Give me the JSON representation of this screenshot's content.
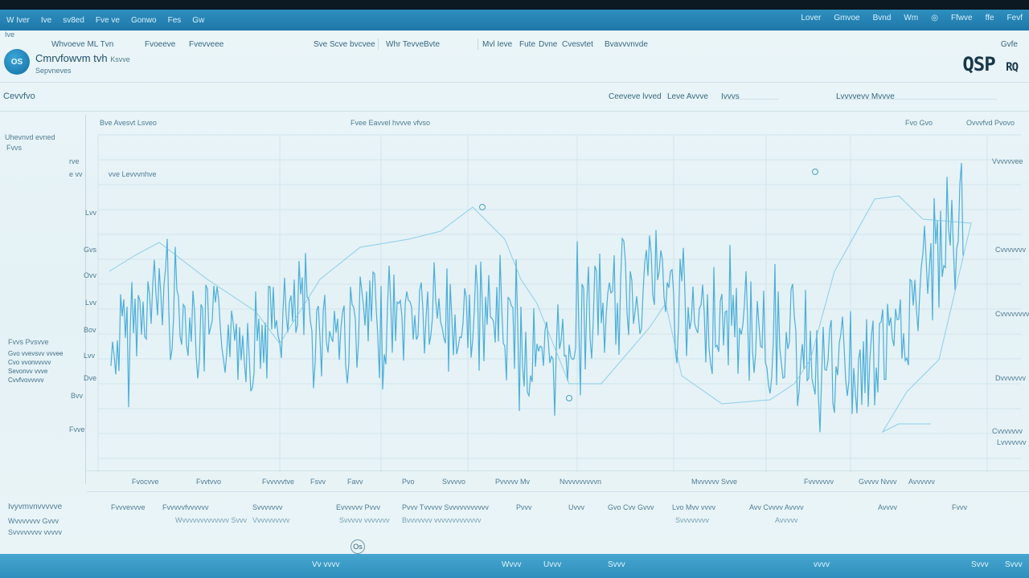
{
  "topbar": {
    "menu": [
      "W Iver",
      "Ive",
      "sv8ed",
      "Fve ve",
      "Gonwo",
      "Fes",
      "Gw"
    ],
    "right": [
      "Lover",
      "Gmvoe",
      "Bvnd",
      "Wm",
      "◎",
      "Ffwve",
      "ffe",
      "Fevf"
    ]
  },
  "header": {
    "nav": [
      "Whvoeve ML Tvn",
      "Fvoeeve",
      "Fvevveee",
      "Sve",
      "Scve bvcvee",
      "Whr Tevve",
      "Bvte",
      "Mvl Ieve",
      "Fute",
      "Dvne",
      "Cvesvtet",
      "Bvavvvnvde",
      "Gvfe"
    ],
    "logo_text": "OS",
    "brand": "Cmrvfowvm tvh",
    "brand_suffix": "Ksvve",
    "brand_sub": "Sepvneves",
    "code": "QSP",
    "code_suffix": "RQ",
    "code_top": "Gvfe"
  },
  "toolbar": {
    "left_label": "Cevvfvo",
    "items": [
      "Ceeveve lvved",
      "Leve Avvve",
      "Ivvvs"
    ],
    "right_item": "Lvvvvevv Mvvve"
  },
  "chart_header": {
    "left": "Bve Avesvt Lsveo",
    "center": "Fvee Eavvel hvvve vfvso",
    "right1": "Fvo Gvo",
    "right2": "Ovvvfvd Pvovo"
  },
  "left_panel": {
    "title": "Uhevnvd evned",
    "sub": "Fvvs",
    "section": "Fvvs Pvsvve",
    "lines": [
      "Gvo vvevsvv vvvee",
      "Cvo vvonvvvvv",
      "Sevonvv vvve",
      "Cvvfvovvvvv"
    ]
  },
  "y_labels_left": [
    "rve",
    "e vv",
    "Lvv",
    "Gvs",
    "Ovv",
    "Lvv",
    "Bov",
    "Lvv",
    "Dve",
    "Bvv",
    "Fvve"
  ],
  "annotation": "vve Levvvnhve",
  "y_labels_right": [
    "Vvvvvvee",
    "Cvvvvvvv",
    "Cvvvvvvvv",
    "Dvvvvvvv",
    "Cvvvvvvv",
    "Lvvvvvvv"
  ],
  "x_labels": [
    "Fvocvve",
    "Fvvtvvo",
    "Fvvvvvtve",
    "Fsvv",
    "Favv",
    "Pvo",
    "Svvvvo",
    "Pvvvvv Mv",
    "Nvvvvvvvvvn",
    "Mvvvvvv Svve",
    "Fvvvvvvv",
    "Gvvvv Nvvv",
    "Avvvvvv"
  ],
  "footer_row1": [
    "Fvvvevvve",
    "Fvvvvvfvvvvvv",
    "Svvvvvvv",
    "Evvvvvv Pvvv",
    "Pvvv Tvvvvv Svvvvvvvvvvv",
    "Pvvv",
    "Uvvv",
    "Gvo Cvv Gvvv",
    "Lvo Mvv vvvv",
    "Avv Cvvvv Avvvv",
    "Avvvv",
    "Fvvv"
  ],
  "footer_row2": [
    "Wvvvvvvvvvvvvv Svvv",
    "Vvvvvvvvvv",
    "Svvvvv vvvvvvv",
    "Bvvvvvvv vvvvvvvvvvvvv",
    "Svvvvvvvv",
    "Avvvvv"
  ],
  "footer_left": {
    "title": "Ivyvmvnvvvvve",
    "lines": [
      "Wvvvvvvv Gvvv",
      "Svvvvvvvv vvvvv"
    ]
  },
  "footer_center_icon": "Os",
  "bottombar": [
    "Vv vvvv",
    "Wvvv",
    "Uvvv",
    "Svvv",
    "vvvv",
    "Svvv",
    "Svvv"
  ],
  "colors": {
    "accent": "#1e77a8",
    "line_primary": "#3aa6d6",
    "line_secondary": "#6fc3e6",
    "background": "#e6f2f6"
  }
}
